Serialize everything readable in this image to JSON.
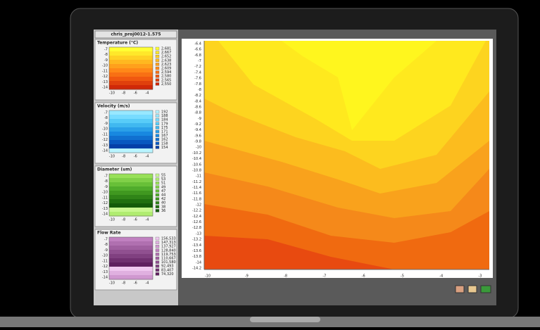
{
  "window": {
    "title": "chris_proj0012-1.575"
  },
  "panels": [
    {
      "title": "Temperature (°C)",
      "yticks": [
        "-7",
        "-8",
        "-9",
        "-10",
        "-11",
        "-12",
        "-13",
        "-14"
      ],
      "xticks": [
        "-10",
        "-8",
        "-6",
        "-4"
      ],
      "legend": [
        "2,681",
        "2,667",
        "2,652",
        "2,638",
        "2,623",
        "2,609",
        "2,594",
        "2,580",
        "2,565",
        "2,550"
      ]
    },
    {
      "title": "Velocity (m/s)",
      "yticks": [
        "-7",
        "-8",
        "-9",
        "-10",
        "-11",
        "-12",
        "-13",
        "-14"
      ],
      "xticks": [
        "-10",
        "-8",
        "-6",
        "-4"
      ],
      "legend": [
        "192",
        "188",
        "184",
        "179",
        "175",
        "171",
        "167",
        "162",
        "158",
        "154"
      ]
    },
    {
      "title": "Diameter (um)",
      "yticks": [
        "-7",
        "-8",
        "-9",
        "-10",
        "-11",
        "-12",
        "-13",
        "-14"
      ],
      "xticks": [
        "-10",
        "-8",
        "-6",
        "-4"
      ],
      "legend": [
        "55",
        "53",
        "51",
        "49",
        "47",
        "44",
        "42",
        "40",
        "38",
        "36"
      ]
    },
    {
      "title": "Flow Rate",
      "yticks": [
        "-7",
        "-8",
        "-9",
        "-10",
        "-11",
        "-12",
        "-13",
        "-14"
      ],
      "xticks": [
        "-10",
        "-8",
        "-6",
        "-4"
      ],
      "legend": [
        "156,533",
        "147,313",
        "137,927",
        "128,840",
        "119,753",
        "110,667",
        "101,580",
        "92,493",
        "83,407",
        "74,320"
      ]
    }
  ],
  "main": {
    "yticks": [
      "-6.4",
      "-6.6",
      "-6.8",
      "-7",
      "-7.2",
      "-7.4",
      "-7.6",
      "-7.8",
      "-8",
      "-8.2",
      "-8.4",
      "-8.6",
      "-8.8",
      "-9",
      "-9.2",
      "-9.4",
      "-9.6",
      "-9.8",
      "-10",
      "-10.2",
      "-10.4",
      "-10.6",
      "-10.8",
      "-11",
      "-11.2",
      "-11.4",
      "-11.6",
      "-11.8",
      "-12",
      "-12.2",
      "-12.4",
      "-12.6",
      "-12.8",
      "-13",
      "-13.2",
      "-13.4",
      "-13.6",
      "-13.8",
      "-14",
      "-14.2"
    ],
    "xticks": [
      "-10",
      "-9",
      "-8",
      "-7",
      "-6",
      "-5",
      "-4",
      "-3"
    ]
  }
}
